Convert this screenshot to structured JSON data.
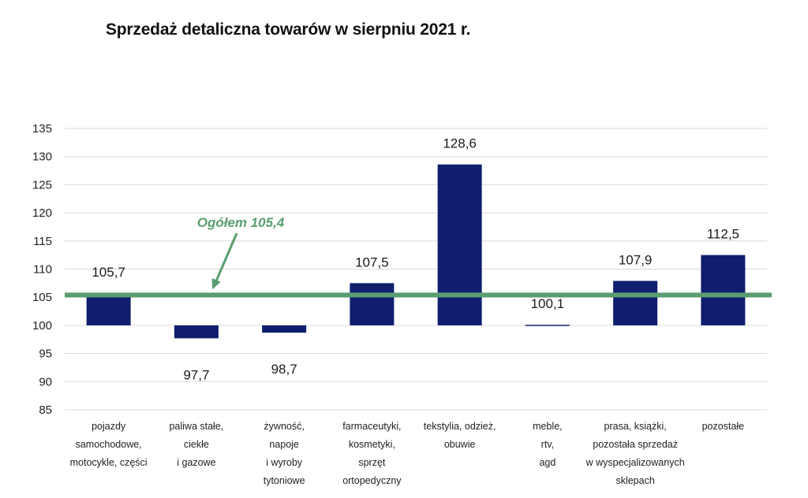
{
  "chart_data": {
    "type": "bar",
    "title": "Sprzedaż detaliczna towarów w sierpniu 2021 r.",
    "xlabel": "",
    "ylabel": "",
    "ylim": [
      85,
      135
    ],
    "yticks": [
      85,
      90,
      95,
      100,
      105,
      110,
      115,
      120,
      125,
      130,
      135
    ],
    "baseline": 100,
    "grid": true,
    "legend": "none",
    "categories": [
      [
        "pojazdy",
        "samochodowe,",
        "motocykle, części"
      ],
      [
        "paliwa stałe,",
        "ciekłe",
        "i gazowe"
      ],
      [
        "żywność,",
        "napoje",
        "i wyroby",
        "tytoniowe"
      ],
      [
        "farmaceutyki,",
        "kosmetyki,",
        "sprzęt",
        "ortopedyczny"
      ],
      [
        "tekstylia, odzież,",
        "obuwie"
      ],
      [
        "meble,",
        "rtv,",
        "agd"
      ],
      [
        "prasa, książki,",
        "pozostała sprzedaż",
        "w wyspecjalizowanych",
        "sklepach"
      ],
      [
        "pozostałe"
      ]
    ],
    "values": [
      105.7,
      97.7,
      98.7,
      107.5,
      128.6,
      100.1,
      107.9,
      112.5
    ],
    "value_labels": [
      "105,7",
      "97,7",
      "98,7",
      "107,5",
      "128,6",
      "100,1",
      "107,9",
      "112,5"
    ],
    "reference_line": {
      "value": 105.4,
      "label": "Ogółem 105,4"
    },
    "colors": {
      "bar": "#0f1f6e",
      "reference": "#5a9e6f",
      "grid": "#d9d9d9"
    }
  }
}
